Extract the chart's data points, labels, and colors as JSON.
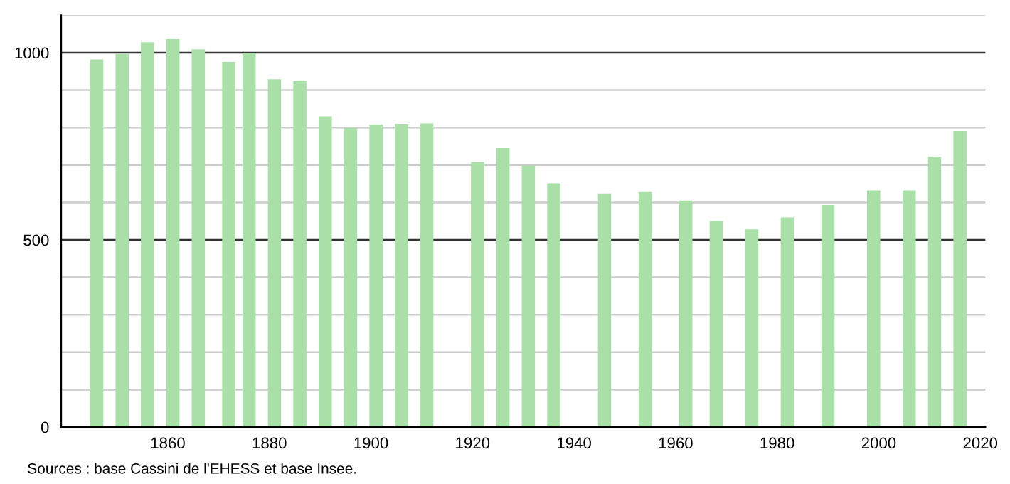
{
  "chart_data": {
    "type": "bar",
    "x": [
      1846,
      1851,
      1856,
      1861,
      1866,
      1872,
      1876,
      1881,
      1886,
      1891,
      1896,
      1901,
      1906,
      1911,
      1921,
      1926,
      1931,
      1936,
      1946,
      1954,
      1962,
      1968,
      1975,
      1982,
      1990,
      1999,
      2006,
      2011,
      2016
    ],
    "values": [
      982,
      996,
      1028,
      1036,
      1009,
      975,
      999,
      929,
      924,
      830,
      799,
      808,
      810,
      811,
      708,
      745,
      698,
      651,
      624,
      628,
      605,
      551,
      528,
      560,
      593,
      632,
      632,
      722,
      791
    ],
    "color": "#a8e0a8",
    "xlim": [
      1839,
      2021
    ],
    "xticks": [
      1860,
      1880,
      1900,
      1920,
      1940,
      1960,
      1980,
      2000,
      2020
    ],
    "ylim": [
      0,
      1100
    ],
    "yticks": [
      0,
      {
        "value": 100,
        "label": null
      },
      {
        "value": 200,
        "label": null
      },
      {
        "value": 300,
        "label": null
      },
      {
        "value": 400,
        "label": null
      },
      500,
      {
        "value": 600,
        "label": null
      },
      {
        "value": 700,
        "label": null
      },
      {
        "value": 800,
        "label": null
      },
      {
        "value": 900,
        "label": null
      },
      1000,
      {
        "value": 1100,
        "label": null
      }
    ],
    "grid": "y",
    "annotations": [
      "Sources : base Cassini de l'EHESS et base Insee."
    ]
  }
}
